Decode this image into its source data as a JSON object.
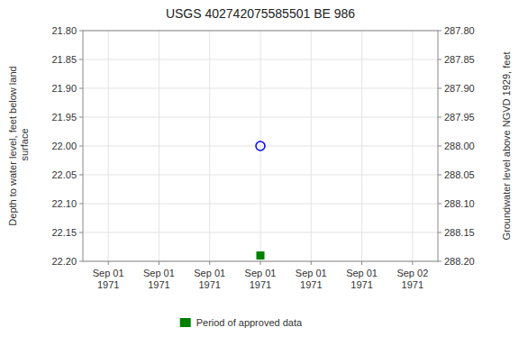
{
  "chart_data": {
    "type": "scatter",
    "title": "USGS 402742075585501 BE   986",
    "y_label": "Depth to water level, feet below land\n surface",
    "y2_label": "Groundwater level above NGVD 1929, feet",
    "categories": [
      "Sep 01\n1971",
      "Sep 01\n1971",
      "Sep 01\n1971",
      "Sep 01\n1971",
      "Sep 01\n1971",
      "Sep 01\n1971",
      "Sep 02\n1971"
    ],
    "series": [
      {
        "color": "blue",
        "marker": "open-circle",
        "values": [
          null,
          null,
          null,
          22.0,
          null,
          null,
          null
        ]
      },
      {
        "name": "Period of approved data",
        "color": "#008000",
        "marker": "square",
        "values": [
          null,
          null,
          null,
          22.19,
          null,
          null,
          null
        ]
      }
    ],
    "ylim": [
      22.2,
      21.8
    ],
    "yticks": [
      {
        "value": 21.8,
        "label": "21.80"
      },
      {
        "value": 21.85,
        "label": "21.85"
      },
      {
        "value": 21.9,
        "label": "21.90"
      },
      {
        "value": 21.95,
        "label": "21.95"
      },
      {
        "value": 22.0,
        "label": "22.00"
      },
      {
        "value": 22.05,
        "label": "22.05"
      },
      {
        "value": 22.1,
        "label": "22.10"
      },
      {
        "value": 22.15,
        "label": "22.15"
      },
      {
        "value": 22.2,
        "label": "22.20"
      }
    ],
    "y2lim": [
      288.2,
      287.8
    ],
    "y2ticks": [
      {
        "value": 288.2,
        "label": "288.20"
      },
      {
        "value": 288.15,
        "label": "288.15"
      },
      {
        "value": 288.1,
        "label": "288.10"
      },
      {
        "value": 288.05,
        "label": "288.05"
      },
      {
        "value": 288.0,
        "label": "288.00"
      },
      {
        "value": 287.95,
        "label": "287.95"
      },
      {
        "value": 287.9,
        "label": "287.90"
      },
      {
        "value": 287.85,
        "label": "287.85"
      },
      {
        "value": 287.8,
        "label": "287.80"
      }
    ],
    "grid": true,
    "legend": "bottom"
  }
}
